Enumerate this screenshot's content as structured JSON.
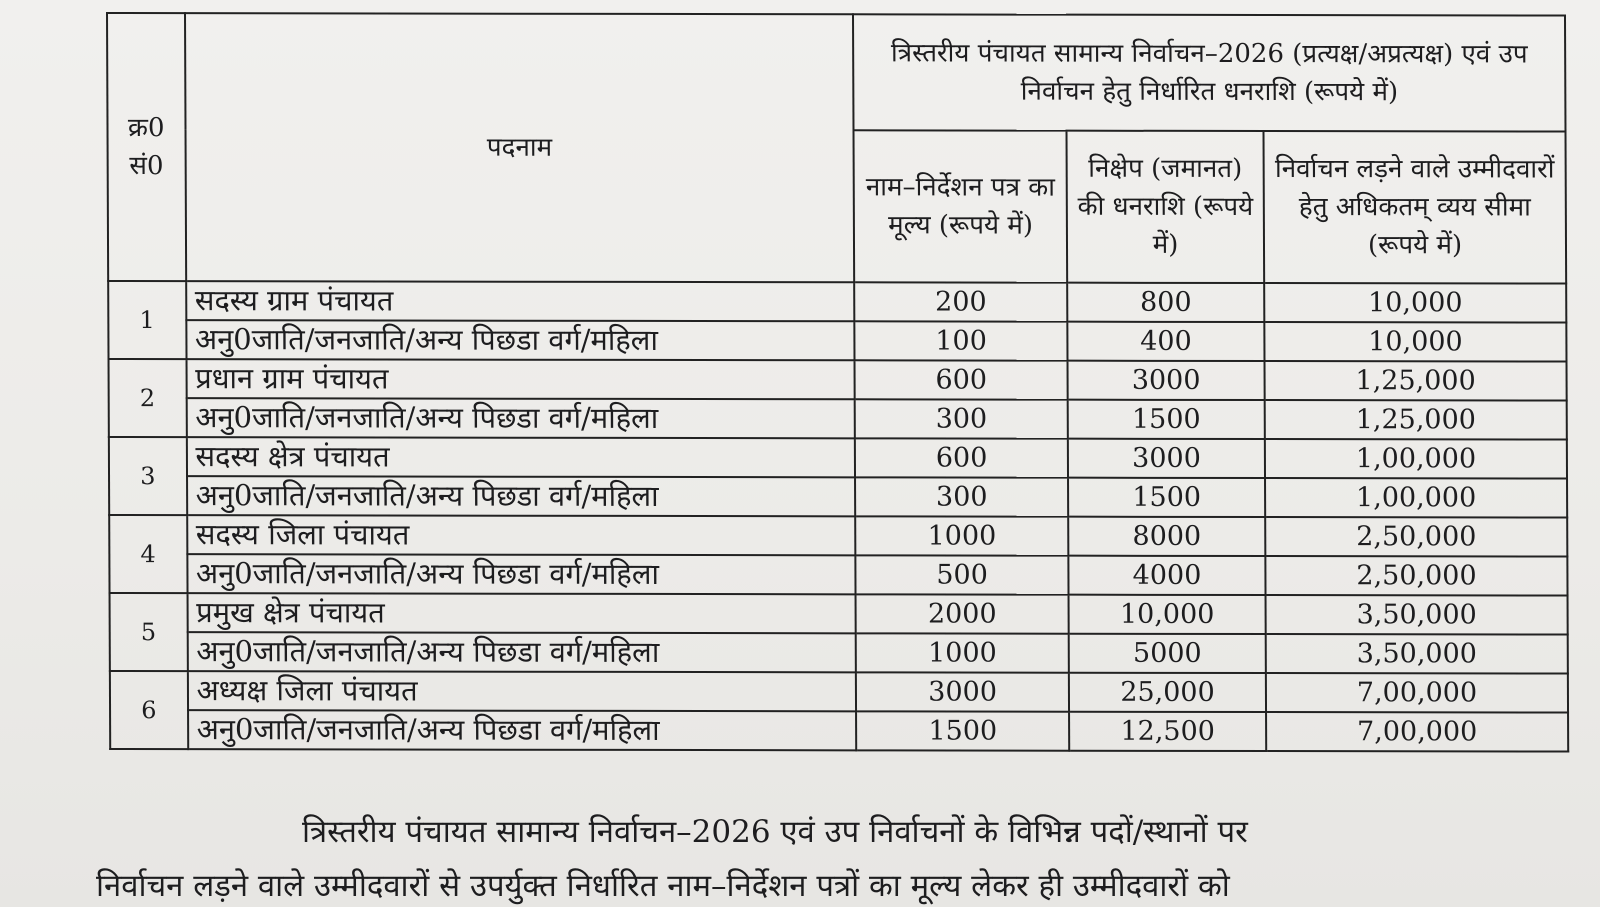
{
  "table": {
    "header": {
      "sno": "क्र0 सं0",
      "post": "पदनाम",
      "group": "त्रिस्तरीय पंचायत सामान्य निर्वाचन–2026 (प्रत्यक्ष/अप्रत्यक्ष) एवं उप निर्वाचन हेतु निर्धारित धनराशि (रूपये में)",
      "col_nomination": "नाम–निर्देशन पत्र का मूल्य (रूपये में)",
      "col_deposit": "निक्षेप (जमानत) की धनराशि (रूपये में)",
      "col_expense": "निर्वाचन लड़ने वाले उम्मीदवारों हेतु अधिकतम् व्यय सीमा (रूपये में)"
    },
    "rows": [
      {
        "sno": "1",
        "posts": [
          {
            "name": "सदस्य ग्राम पंचायत",
            "nomination": "200",
            "deposit": "800",
            "expense": "10,000"
          },
          {
            "name": "अनु0जाति/जनजाति/अन्य पिछडा वर्ग/महिला",
            "nomination": "100",
            "deposit": "400",
            "expense": "10,000"
          }
        ]
      },
      {
        "sno": "2",
        "posts": [
          {
            "name": "प्रधान ग्राम पंचायत",
            "nomination": "600",
            "deposit": "3000",
            "expense": "1,25,000"
          },
          {
            "name": "अनु0जाति/जनजाति/अन्य पिछडा वर्ग/महिला",
            "nomination": "300",
            "deposit": "1500",
            "expense": "1,25,000"
          }
        ]
      },
      {
        "sno": "3",
        "posts": [
          {
            "name": "सदस्य क्षेत्र पंचायत",
            "nomination": "600",
            "deposit": "3000",
            "expense": "1,00,000"
          },
          {
            "name": "अनु0जाति/जनजाति/अन्य पिछडा वर्ग/महिला",
            "nomination": "300",
            "deposit": "1500",
            "expense": "1,00,000"
          }
        ]
      },
      {
        "sno": "4",
        "posts": [
          {
            "name": "सदस्य जिला पंचायत",
            "nomination": "1000",
            "deposit": "8000",
            "expense": "2,50,000"
          },
          {
            "name": "अनु0जाति/जनजाति/अन्य पिछडा वर्ग/महिला",
            "nomination": "500",
            "deposit": "4000",
            "expense": "2,50,000"
          }
        ]
      },
      {
        "sno": "5",
        "posts": [
          {
            "name": "प्रमुख क्षेत्र पंचायत",
            "nomination": "2000",
            "deposit": "10,000",
            "expense": "3,50,000"
          },
          {
            "name": "अनु0जाति/जनजाति/अन्य पिछडा वर्ग/महिला",
            "nomination": "1000",
            "deposit": "5000",
            "expense": "3,50,000"
          }
        ]
      },
      {
        "sno": "6",
        "posts": [
          {
            "name": "अध्यक्ष जिला पंचायत",
            "nomination": "3000",
            "deposit": "25,000",
            "expense": "7,00,000"
          },
          {
            "name": "अनु0जाति/जनजाति/अन्य पिछडा वर्ग/महिला",
            "nomination": "1500",
            "deposit": "12,500",
            "expense": "7,00,000"
          }
        ]
      }
    ]
  },
  "paragraph": {
    "line1": "त्रिस्तरीय पंचायत सामान्य निर्वाचन–2026 एवं उप निर्वाचनों के विभिन्न पदों/स्थानों पर",
    "line2": "निर्वाचन लड़ने वाले उम्मीदवारों से उपर्युक्त निर्धारित नाम–निर्देशन पत्रों का मूल्य लेकर ही उम्मीदवारों को"
  }
}
